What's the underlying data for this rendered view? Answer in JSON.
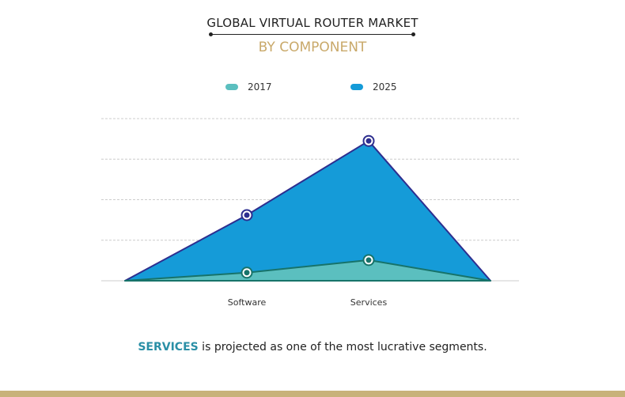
{
  "chart_data": {
    "type": "area",
    "title": "GLOBAL VIRTUAL ROUTER MARKET",
    "subtitle": "BY COMPONENT",
    "categories": [
      "",
      "Software",
      "Services",
      ""
    ],
    "series": [
      {
        "name": "2017",
        "values": [
          0,
          0.2,
          0.51,
          0
        ],
        "color": "#5bbfbf",
        "line": "#17736a"
      },
      {
        "name": "2025",
        "values": [
          0,
          1.62,
          3.45,
          0
        ],
        "color": "#159bd8",
        "line": "#2d2e8f"
      }
    ],
    "ylim": [
      0,
      4
    ],
    "grid": true,
    "legend": "top-center",
    "xlabel": "",
    "ylabel": ""
  },
  "caption": {
    "highlight": "SERVICES",
    "rest": " is projected as one of the most lucrative segments."
  }
}
